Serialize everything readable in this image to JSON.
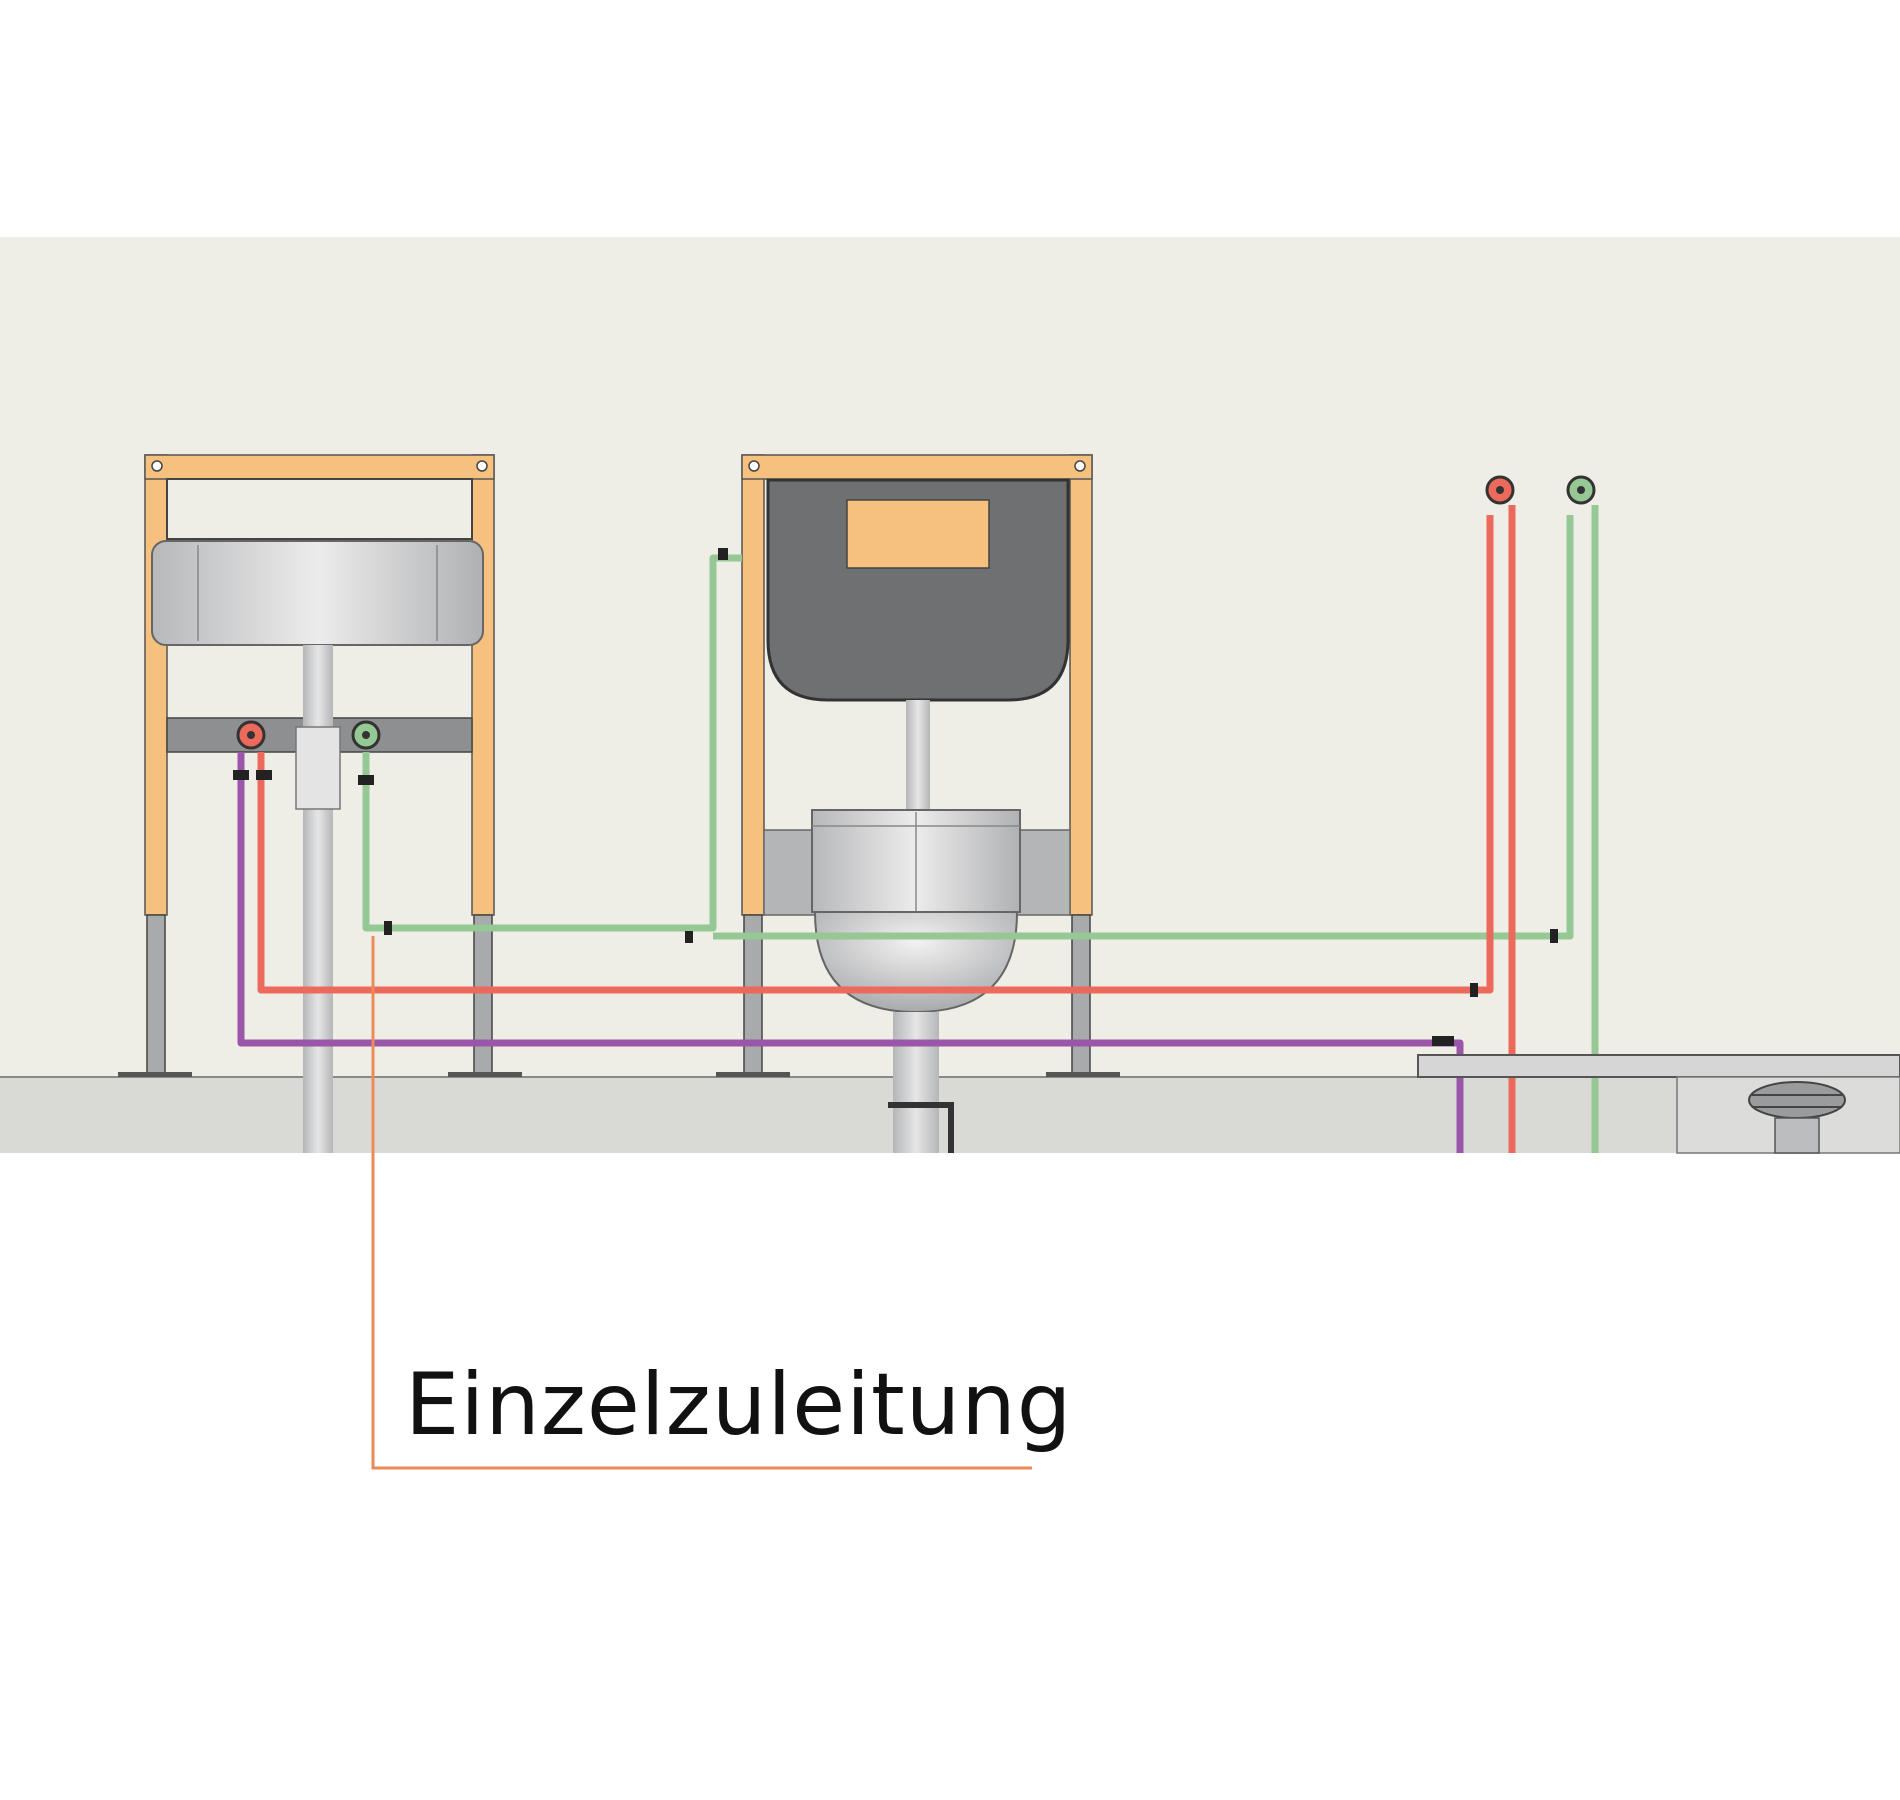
{
  "diagram": {
    "label": "Einzelzuleitung",
    "colors": {
      "wall": "#eeede6",
      "floor": "#d9d9d6",
      "frame": "#f6c07e",
      "cold_water": "#95c894",
      "hot_water": "#ec6a5c",
      "circulation": "#9a56a8",
      "callout_line": "#ee8a55",
      "cistern": "#6e7071",
      "flush_plate": "#f6c07e",
      "porcelain": "#c9cacc"
    },
    "icons": [
      "washbasin-icon",
      "wc-bowl-icon",
      "cistern-icon",
      "valve-icon",
      "floor-drain-icon"
    ]
  }
}
